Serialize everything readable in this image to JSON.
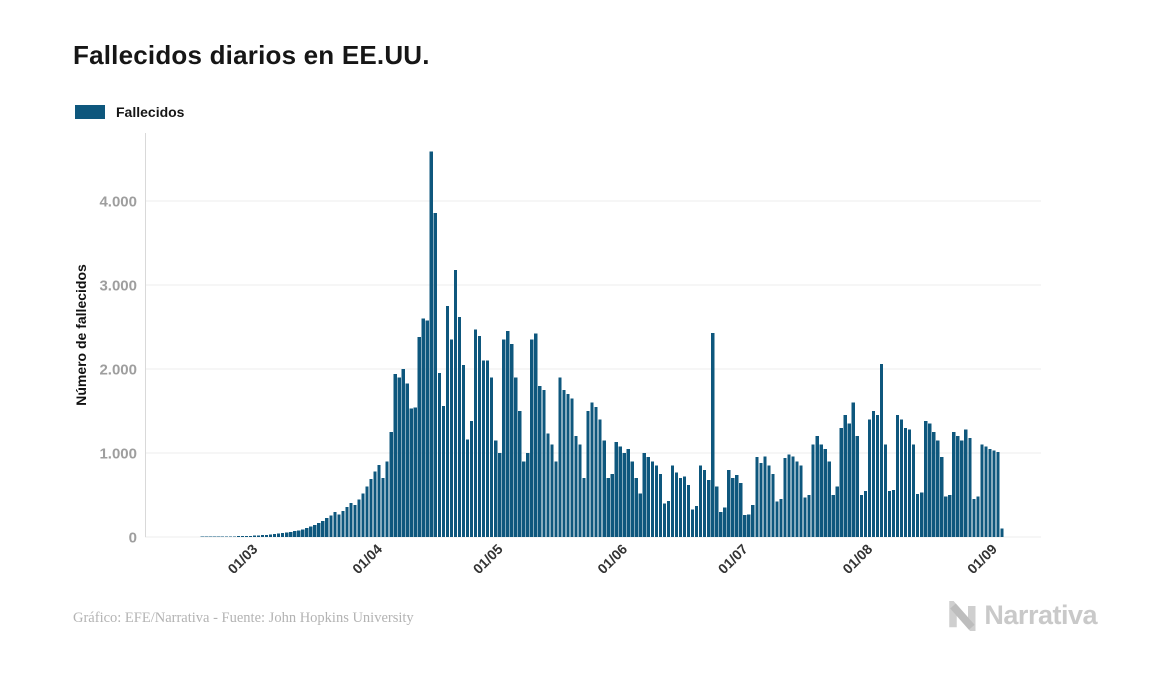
{
  "header": {
    "title": "Fallecidos diarios en EE.UU."
  },
  "legend": {
    "label": "Fallecidos"
  },
  "footer": {
    "credit": "Gráfico: EFE/Narrativa - Fuente: John Hopkins University",
    "brand": "Narrativa"
  },
  "colors": {
    "accent": "#0E577D",
    "grid": "#ececec",
    "axis_line": "#d9d9d9",
    "y_tick": "#9e9e9e",
    "x_tick": "#333333",
    "axis_title": "#111111"
  },
  "chart_data": {
    "type": "bar",
    "title": "Fallecidos diarios en EE.UU.",
    "xlabel": "",
    "ylabel": "Número de fallecidos",
    "legend_entries": [
      "Fallecidos"
    ],
    "legend_position": "top-left",
    "grid": true,
    "bar_color": "#0E577D",
    "ylim": [
      0,
      4750
    ],
    "yticks": [
      0,
      1000,
      2000,
      3000,
      4000
    ],
    "ytick_labels": [
      "0",
      "1.000",
      "2.000",
      "3.000",
      "4.000"
    ],
    "xtick_labels": [
      "01/03",
      "01/04",
      "01/05",
      "01/06",
      "01/07",
      "01/08",
      "01/09"
    ],
    "x_date_format": "DD/MM (year 2020)",
    "series_name": "Fallecidos",
    "months": [
      {
        "month": "02",
        "start_day": 7,
        "values": [
          1,
          1,
          1,
          1,
          2,
          2,
          2,
          2,
          2,
          3,
          3,
          3,
          3,
          4,
          4,
          4,
          5,
          5,
          6,
          6,
          7,
          8,
          9
        ]
      },
      {
        "month": "03",
        "start_day": 1,
        "values": [
          10,
          12,
          14,
          16,
          19,
          22,
          26,
          30,
          35,
          40,
          46,
          53,
          61,
          70,
          80,
          92,
          106,
          123,
          143,
          166,
          193,
          224,
          258,
          296,
          268,
          310,
          356,
          405,
          380,
          445,
          515
        ]
      },
      {
        "month": "04",
        "start_day": 1,
        "values": [
          600,
          690,
          780,
          860,
          700,
          900,
          1250,
          1940,
          1900,
          2000,
          1830,
          1530,
          1540,
          2380,
          2600,
          2580,
          4590,
          3860,
          1950,
          1560,
          2750,
          2350,
          3180,
          2620,
          2050,
          1160,
          1380,
          2470,
          2390,
          2100
        ]
      },
      {
        "month": "05",
        "start_day": 1,
        "values": [
          2100,
          1900,
          1150,
          1000,
          2350,
          2450,
          2300,
          1900,
          1500,
          900,
          1000,
          2350,
          2420,
          1800,
          1750,
          1230,
          1100,
          900,
          1900,
          1750,
          1700,
          1650,
          1200,
          1100,
          700,
          1500,
          1600,
          1550,
          1400,
          1150,
          700
        ]
      },
      {
        "month": "06",
        "start_day": 1,
        "values": [
          750,
          1130,
          1080,
          1000,
          1050,
          900,
          700,
          520,
          1000,
          950,
          900,
          850,
          750,
          400,
          430,
          850,
          770,
          700,
          720,
          620,
          330,
          370,
          850,
          800,
          680,
          2430,
          600,
          300,
          350,
          800
        ]
      },
      {
        "month": "07",
        "start_day": 1,
        "values": [
          700,
          740,
          640,
          260,
          270,
          380,
          950,
          880,
          960,
          850,
          750,
          420,
          450,
          940,
          980,
          960,
          900,
          850,
          470,
          500,
          1100,
          1200,
          1100,
          1050,
          900,
          500,
          600,
          1300,
          1450,
          1350,
          1600
        ]
      },
      {
        "month": "08",
        "start_day": 1,
        "values": [
          1200,
          500,
          550,
          1400,
          1500,
          1450,
          2060,
          1100,
          550,
          560,
          1450,
          1400,
          1300,
          1280,
          1100,
          510,
          530,
          1380,
          1350,
          1250,
          1150,
          950,
          480,
          500,
          1250,
          1200,
          1150,
          1280,
          1180,
          450,
          480
        ]
      },
      {
        "month": "09",
        "start_day": 1,
        "values": [
          1100,
          1080,
          1050,
          1030,
          1010,
          100
        ]
      }
    ]
  }
}
